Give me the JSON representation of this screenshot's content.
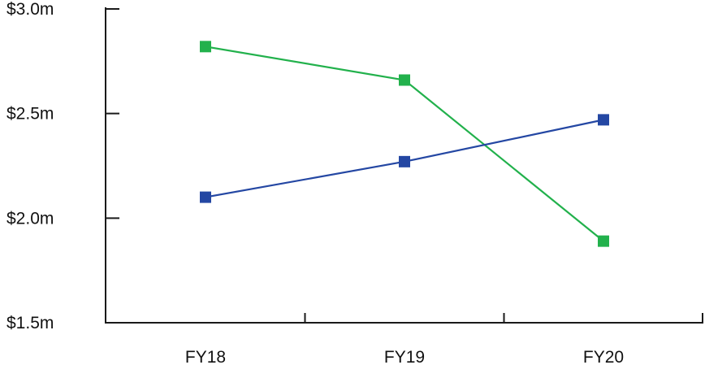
{
  "chart_data": {
    "type": "line",
    "categories": [
      "FY18",
      "FY19",
      "FY20"
    ],
    "series": [
      {
        "color": "#22b14c",
        "values": [
          2.82,
          2.66,
          1.89
        ]
      },
      {
        "color": "#2447a3",
        "values": [
          2.1,
          2.27,
          2.47
        ]
      }
    ],
    "ylim": [
      1.5,
      3.0
    ],
    "yticks": [
      {
        "value": 3.0,
        "label": "$3.0m"
      },
      {
        "value": 2.5,
        "label": "$2.5m"
      },
      {
        "value": 2.0,
        "label": "$2.0m"
      },
      {
        "value": 1.5,
        "label": "$1.5m"
      }
    ],
    "grid": false,
    "legend": "none"
  }
}
